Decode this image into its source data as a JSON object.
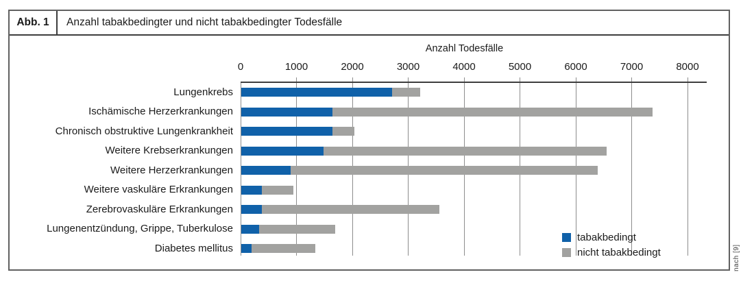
{
  "header": {
    "figure_label": "Abb. 1",
    "title": "Anzahl tabakbedingter und nicht tabakbedingter Todesfälle"
  },
  "source_note": "nach [9]",
  "chart_data": {
    "type": "bar",
    "orientation": "horizontal",
    "stacked": true,
    "title": "Anzahl tabakbedingter und nicht tabakbedingter Todesfälle",
    "xlabel": "Anzahl Todesfälle",
    "xlim": [
      0,
      8300
    ],
    "x_ticks": [
      0,
      1000,
      2000,
      3000,
      4000,
      5000,
      6000,
      7000,
      8000
    ],
    "grid": true,
    "legend_position": "inside-bottom-right",
    "categories": [
      "Lungenkrebs",
      "Ischämische Herzerkrankungen",
      "Chronisch obstruktive Lungenkrankheit",
      "Weitere Krebserkrankungen",
      "Weitere Herzerkrankungen",
      "Weitere vaskuläre Erkrankungen",
      "Zerebrovaskuläre Erkrankungen",
      "Lungenentzündung, Grippe, Tuberkulose",
      "Diabetes mellitus"
    ],
    "series": [
      {
        "name": "tabakbedingt",
        "color": "#1061a9",
        "values": [
          2700,
          1630,
          1630,
          1470,
          880,
          370,
          370,
          320,
          190
        ]
      },
      {
        "name": "nicht tabakbedingt",
        "color": "#a2a2a0",
        "values": [
          500,
          5730,
          400,
          5070,
          5500,
          560,
          3180,
          1360,
          1130
        ]
      }
    ],
    "totals": [
      3200,
      7360,
      2030,
      6540,
      6380,
      930,
      3550,
      1680,
      1320
    ]
  }
}
